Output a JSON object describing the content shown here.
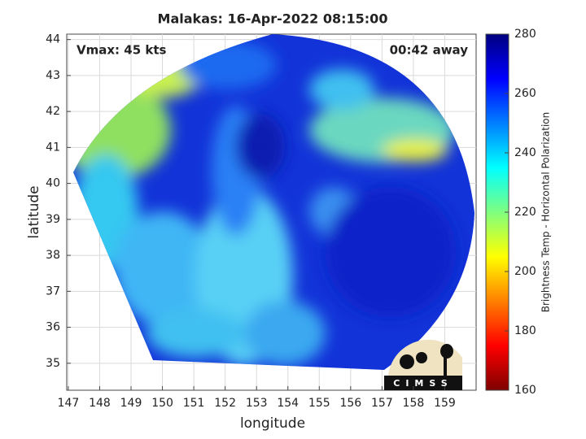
{
  "chart_data": {
    "type": "heatmap",
    "title": "Malakas: 16-Apr-2022 08:15:00",
    "annotations": [
      "Vmax: 45 kts",
      "00:42 away"
    ],
    "xlabel": "longitude",
    "ylabel": "latitude",
    "xlim": [
      146.95,
      160
    ],
    "xticks": [
      147,
      148,
      149,
      150,
      151,
      152,
      153,
      154,
      155,
      156,
      157,
      158,
      159
    ],
    "ylim": [
      34.25,
      44.15
    ],
    "yticks": [
      35,
      36,
      37,
      38,
      39,
      40,
      41,
      42,
      43,
      44
    ],
    "grid": true,
    "colorbar": {
      "label": "Brightness Temp - Horizontal Polarization",
      "lim": [
        160,
        280
      ],
      "ticks": [
        160,
        180,
        200,
        220,
        240,
        260,
        280
      ],
      "colors": [
        "#7f0000",
        "#ff0000",
        "#ff7f00",
        "#ffff00",
        "#7fff7f",
        "#00ffff",
        "#007fff",
        "#0000ff",
        "#00007f"
      ]
    },
    "logo": "CIMSS"
  }
}
